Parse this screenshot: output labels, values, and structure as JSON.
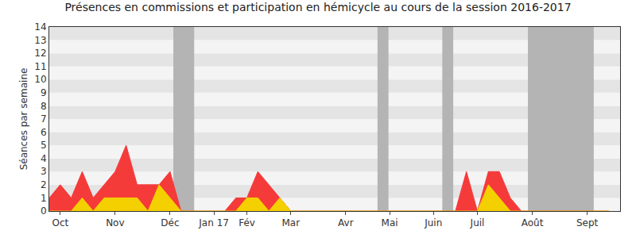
{
  "chart_data": {
    "type": "area",
    "title": "Présences en commissions et participation en hémicycle au cours de la session 2016-2017",
    "y_label": "Séances par semaine",
    "categories": [
      null,
      "Oct",
      null,
      null,
      null,
      null,
      "Nov",
      null,
      null,
      null,
      null,
      "Déc",
      null,
      null,
      null,
      "Jan 17",
      null,
      null,
      "Fév",
      null,
      null,
      null,
      "Mar",
      null,
      null,
      null,
      null,
      "Avr",
      null,
      null,
      null,
      "Mai",
      null,
      null,
      null,
      "Juin",
      null,
      null,
      null,
      "Juil",
      null,
      null,
      null,
      null,
      "Août",
      null,
      null,
      null,
      null,
      "Sept",
      null,
      null
    ],
    "series": [
      {
        "color": "#f53a3a",
        "values": [
          1,
          2,
          1,
          3,
          1,
          2,
          3,
          5,
          2,
          2,
          2,
          3,
          0,
          0,
          0,
          0,
          0,
          1,
          1,
          3,
          2,
          1,
          0,
          0,
          0,
          0,
          0,
          0,
          0,
          0,
          0,
          0,
          0,
          0,
          0,
          0,
          0,
          0,
          3,
          0,
          3,
          3,
          1,
          0,
          0,
          0,
          0,
          0,
          0,
          0,
          0,
          0
        ]
      },
      {
        "color": "#f5d000",
        "values": [
          0,
          0,
          0,
          1,
          0,
          1,
          1,
          1,
          1,
          0,
          2,
          1,
          0,
          0,
          0,
          0,
          0,
          0,
          1,
          1,
          0,
          1,
          0,
          0,
          0,
          0,
          0,
          0,
          0,
          0,
          0,
          0,
          0,
          0,
          0,
          0,
          0,
          0,
          0,
          0,
          2,
          1,
          0,
          0,
          0,
          0,
          0,
          0,
          0,
          0,
          0,
          0
        ]
      }
    ],
    "bands": [
      [
        11.3,
        13.2
      ],
      [
        29.9,
        30.9
      ],
      [
        35.8,
        36.8
      ],
      [
        43.6,
        49.6
      ]
    ],
    "xlim": [
      0,
      52
    ],
    "ylim": [
      0,
      14
    ],
    "yticks": [
      0,
      1,
      2,
      3,
      4,
      5,
      6,
      7,
      8,
      9,
      10,
      11,
      12,
      13,
      14
    ],
    "grid": true
  }
}
